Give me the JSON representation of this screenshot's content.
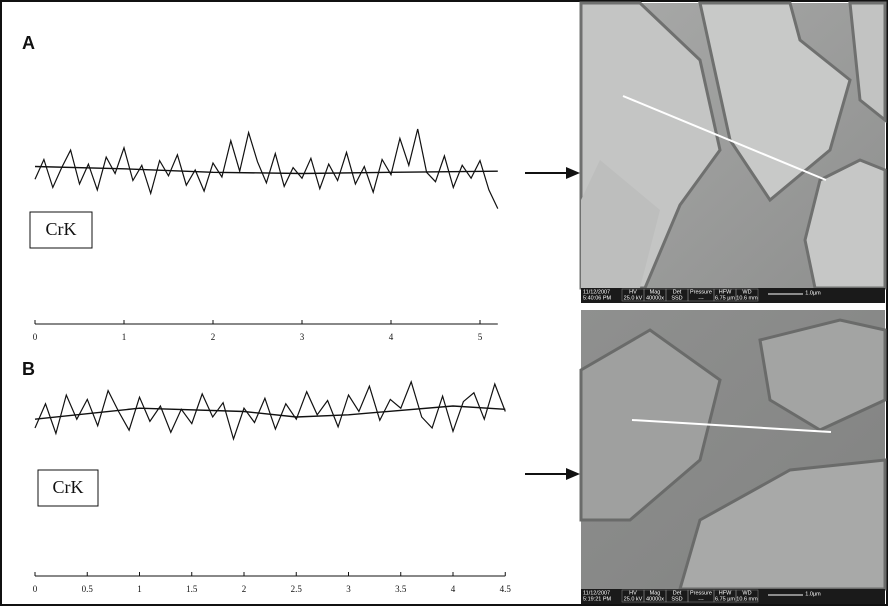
{
  "chart_data": [
    {
      "type": "line",
      "panel_label": "A",
      "element_label": "CrK",
      "xlim": [
        0,
        5.2
      ],
      "xticks": [
        0,
        1,
        2,
        3,
        4,
        5
      ],
      "ylim": [
        0,
        100
      ],
      "series": [
        {
          "color": "#111111",
          "x": [
            0,
            0.1,
            0.2,
            0.3,
            0.4,
            0.5,
            0.6,
            0.7,
            0.8,
            0.9,
            1,
            1.1,
            1.2,
            1.3,
            1.4,
            1.5,
            1.6,
            1.7,
            1.8,
            1.9,
            2,
            2.1,
            2.2,
            2.3,
            2.4,
            2.5,
            2.6,
            2.7,
            2.8,
            2.9,
            3,
            3.1,
            3.2,
            3.3,
            3.4,
            3.5,
            3.6,
            3.7,
            3.8,
            3.9,
            4,
            4.1,
            4.2,
            4.3,
            4.4,
            4.5,
            4.6,
            4.7,
            4.8,
            4.9,
            5,
            5.1,
            5.2
          ],
          "values": [
            45,
            62,
            38,
            55,
            70,
            41,
            58,
            36,
            64,
            50,
            72,
            44,
            57,
            33,
            61,
            48,
            66,
            40,
            53,
            35,
            59,
            47,
            78,
            52,
            85,
            60,
            42,
            67,
            39,
            55,
            46,
            63,
            37,
            58,
            44,
            68,
            41,
            56,
            34,
            62,
            49,
            80,
            57,
            88,
            51,
            43,
            65,
            38,
            57,
            46,
            61,
            36,
            20
          ]
        },
        {
          "color": "#111111",
          "x": [
            0,
            1,
            2,
            3,
            4,
            5.2
          ],
          "values": [
            56,
            54,
            51,
            50,
            51,
            52
          ]
        }
      ]
    },
    {
      "type": "line",
      "panel_label": "B",
      "element_label": "CrK",
      "xlim": [
        0,
        4.5
      ],
      "xticks": [
        0,
        0.5,
        1,
        1.5,
        2,
        2.5,
        3,
        3.5,
        4,
        4.5
      ],
      "ylim": [
        0,
        100
      ],
      "series": [
        {
          "color": "#111111",
          "x": [
            0,
            0.1,
            0.2,
            0.3,
            0.4,
            0.5,
            0.6,
            0.7,
            0.8,
            0.9,
            1,
            1.1,
            1.2,
            1.3,
            1.4,
            1.5,
            1.6,
            1.7,
            1.8,
            1.9,
            2,
            2.1,
            2.2,
            2.3,
            2.4,
            2.5,
            2.6,
            2.7,
            2.8,
            2.9,
            3,
            3.1,
            3.2,
            3.3,
            3.4,
            3.5,
            3.6,
            3.7,
            3.8,
            3.9,
            4,
            4.1,
            4.2,
            4.3,
            4.4,
            4.5
          ],
          "values": [
            40,
            62,
            35,
            70,
            48,
            66,
            42,
            74,
            55,
            38,
            68,
            46,
            60,
            36,
            57,
            44,
            71,
            50,
            63,
            30,
            58,
            45,
            67,
            39,
            62,
            48,
            73,
            52,
            65,
            41,
            70,
            55,
            78,
            47,
            66,
            58,
            82,
            50,
            40,
            69,
            37,
            64,
            72,
            48,
            80,
            55
          ]
        },
        {
          "color": "#111111",
          "x": [
            0,
            1,
            2,
            2.5,
            3,
            4,
            4.5
          ],
          "values": [
            48,
            58,
            55,
            50,
            52,
            60,
            57
          ]
        }
      ]
    }
  ],
  "images": [
    {
      "date": "11/12/2007",
      "time": "5:40:06 PM",
      "cells": [
        {
          "label": "HV",
          "value": "25.0 kV"
        },
        {
          "label": "Mag",
          "value": "40000x"
        },
        {
          "label": "Det",
          "value": "SSD"
        },
        {
          "label": "Pressure",
          "value": "---"
        },
        {
          "label": "HFW",
          "value": "6.75 µm"
        },
        {
          "label": "WD",
          "value": "10.6 mm"
        }
      ],
      "scale": "1.0µm"
    },
    {
      "date": "11/12/2007",
      "time": "5:19:21 PM",
      "cells": [
        {
          "label": "HV",
          "value": "25.0 kV"
        },
        {
          "label": "Mag",
          "value": "40000x"
        },
        {
          "label": "Det",
          "value": "SSD"
        },
        {
          "label": "Pressure",
          "value": "---"
        },
        {
          "label": "HFW",
          "value": "6.75 µm"
        },
        {
          "label": "WD",
          "value": "10.6 mm"
        }
      ],
      "scale": "1.0µm"
    }
  ]
}
